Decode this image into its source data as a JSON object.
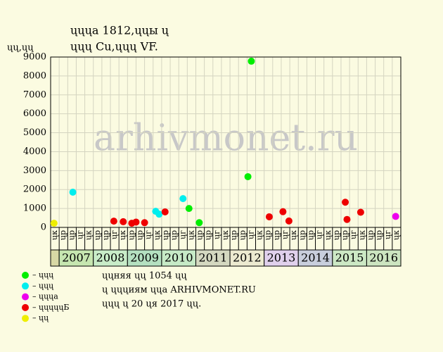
{
  "chart_data": {
    "type": "scatter",
    "title": [
      "ųųųa 1812,ųųы ų",
      "ųųų Cu,ųųų VF."
    ],
    "y_label": "ųų,ųų",
    "watermark": "arhivmonet.ru",
    "ylim": [
      0,
      9000
    ],
    "yticks": [
      0,
      1000,
      2000,
      3000,
      4000,
      5000,
      6000,
      7000,
      8000,
      9000
    ],
    "xlim": [
      0,
      41
    ],
    "columns": [
      "ųк",
      "ųр",
      "ųр",
      "ųг",
      "ųк",
      "ųр",
      "ųр",
      "ųг",
      "ųк",
      "ųр",
      "ųр",
      "ųг",
      "ųк",
      "ųр",
      "ųр",
      "ųг",
      "ųк",
      "ųр",
      "ųр",
      "ųг",
      "ųк",
      "ųр",
      "ųр",
      "ųг",
      "ųк",
      "ųр",
      "ųр",
      "ųг",
      "ųк",
      "ųр",
      "ųр",
      "ųг",
      "ųк",
      "ųр",
      "ųр",
      "ųг",
      "ųк",
      "ųр",
      "ųр",
      "ųг",
      "ųк"
    ],
    "years": [
      {
        "label": "2007",
        "color": "#c6e6b0"
      },
      {
        "label": "2008",
        "color": "#c8ecc8"
      },
      {
        "label": "2009",
        "color": "#b4e0c0"
      },
      {
        "label": "2010",
        "color": "#c6eac6"
      },
      {
        "label": "2011",
        "color": "#d4d8c0"
      },
      {
        "label": "2012",
        "color": "#ecead0"
      },
      {
        "label": "2013",
        "color": "#e0d0ec"
      },
      {
        "label": "2014",
        "color": "#c8cedc"
      },
      {
        "label": "2015",
        "color": "#cce8c4"
      },
      {
        "label": "2016",
        "color": "#cce4c0"
      }
    ],
    "first_column_color": "#d8d8a4",
    "grid": true,
    "series": [
      {
        "name": "– ųųų",
        "color": "#00ee00",
        "x": [
          16.2,
          17.4,
          23.1,
          23.5
        ],
        "values": [
          1000,
          250,
          2680,
          8780
        ]
      },
      {
        "name": "– ųųų",
        "color": "#00eeee",
        "x": [
          2.6,
          12.3,
          12.7,
          15.5
        ],
        "values": [
          1860,
          850,
          700,
          1520
        ]
      },
      {
        "name": "– ųųųa",
        "color": "#ee00ee",
        "x": [
          40.4
        ],
        "values": [
          580
        ]
      },
      {
        "name": "– ųųųųųБ",
        "color": "#ee0000",
        "x": [
          7.4,
          8.5,
          9.5,
          10.0,
          11.0,
          13.4,
          25.6,
          27.2,
          27.9,
          34.5,
          34.7,
          36.3
        ],
        "values": [
          330,
          300,
          220,
          280,
          250,
          820,
          560,
          830,
          340,
          1330,
          420,
          800
        ]
      },
      {
        "name": "– ųų",
        "color": "#eeee00",
        "x": [
          0.4
        ],
        "values": [
          220
        ]
      }
    ],
    "notes": [
      "ųųняя ųų 1054 ųų",
      "ų ųųųиям ųųa ARHIVMONET.RU",
      "ųųų ų 20 ųя 2017 ųų."
    ]
  }
}
